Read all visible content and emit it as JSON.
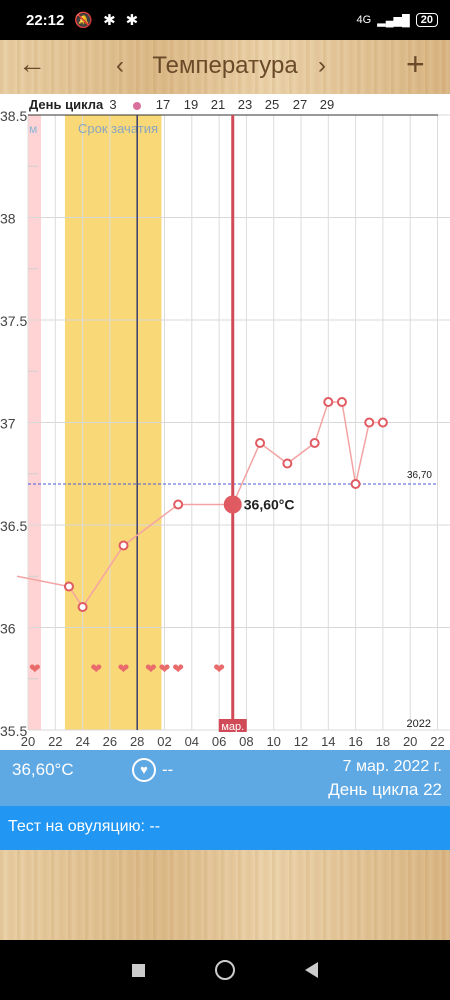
{
  "status_bar": {
    "time": "22:12",
    "network": "4G",
    "battery": "20"
  },
  "app_bar": {
    "title": "Температура"
  },
  "chart_header": {
    "label": "День цикла",
    "cycle_days": [
      "3",
      "17",
      "19",
      "21",
      "23",
      "25",
      "27",
      "29"
    ],
    "fertile_label": "Срок зачатия",
    "period_label": "м"
  },
  "chart_data": {
    "type": "line",
    "ylim": [
      35.5,
      38.5
    ],
    "yticks": [
      "38.5",
      "38",
      "37.5",
      "37",
      "36.5",
      "36",
      "35.5"
    ],
    "xticks": [
      "20",
      "22",
      "24",
      "26",
      "28",
      "02",
      "04",
      "06",
      "08",
      "10",
      "12",
      "14",
      "16",
      "18",
      "20",
      "22"
    ],
    "year_label": "2022",
    "month_marker": "мар.",
    "coverline_label": "36,70",
    "coverline": 36.7,
    "selected_label": "36,60°C",
    "series": [
      {
        "points": [
          {
            "x": "19",
            "y": 36.25
          },
          {
            "x": "23",
            "y": 36.2
          },
          {
            "x": "24",
            "y": 36.1
          },
          {
            "x": "27",
            "y": 36.4
          },
          {
            "x": "03",
            "y": 36.6
          },
          {
            "x": "07",
            "y": 36.6
          },
          {
            "x": "09",
            "y": 36.9
          },
          {
            "x": "11",
            "y": 36.8
          },
          {
            "x": "13",
            "y": 36.9
          },
          {
            "x": "14",
            "y": 37.1
          },
          {
            "x": "15",
            "y": 37.1
          },
          {
            "x": "16",
            "y": 36.7
          },
          {
            "x": "17",
            "y": 37.0
          },
          {
            "x": "18",
            "y": 37.0
          }
        ]
      }
    ],
    "hearts": [
      "21",
      "25",
      "27",
      "01",
      "02",
      "03",
      "06"
    ]
  },
  "info": {
    "temperature": "36,60°C",
    "heart_value": "--",
    "date": "7 мар. 2022 г.",
    "cycle_day": "День цикла 22",
    "ovulation_test": "Тест на овуляцию: --"
  },
  "colors": {
    "accent": "#2196f3",
    "info_bg": "#5ea8e4",
    "line": "#f4a3a3",
    "marker": "#e05a62",
    "fertile": "#f8d877",
    "period": "#ffd3d3"
  }
}
